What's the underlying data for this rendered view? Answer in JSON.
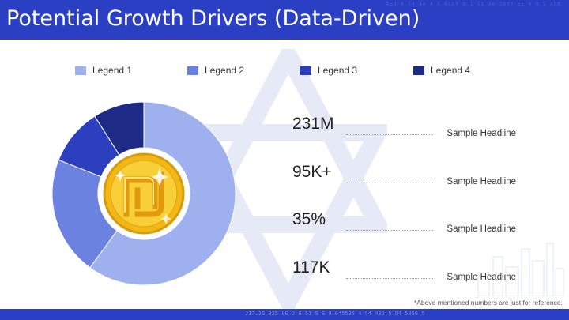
{
  "slide": {
    "title": "Potential Growth Drivers (Data-Driven)",
    "footnote": "*Above mentioned numbers are just for reference."
  },
  "header_deco": "458 4 54 44 4 5 6859 8 1 51 20 3000 05 9 8 5 458",
  "footer_deco": "217.15    325 00 2  0 51 5 6 9 645585 4 54    485 5 54  5856 5",
  "colors": {
    "header": "#2a3fc4",
    "legend1": "#9fb0ee",
    "legend2": "#6c82e0",
    "legend3": "#2b3fbf",
    "legend4": "#1e2b86",
    "star": "#e8ecf8",
    "coin": "#f5c324"
  },
  "chart_data": {
    "type": "pie",
    "donut": true,
    "legend_position": "top",
    "categories": [
      "Legend 1",
      "Legend 2",
      "Legend 3",
      "Legend 4"
    ],
    "values": [
      60,
      21,
      10,
      9
    ],
    "center_icon": "shekel-coin-icon"
  },
  "stats": [
    {
      "value": "231M",
      "label": "Sample Headline"
    },
    {
      "value": "95K+",
      "label": "Sample Headline"
    },
    {
      "value": "35%",
      "label": "Sample Headline"
    },
    {
      "value": "117K",
      "label": "Sample Headline"
    }
  ]
}
